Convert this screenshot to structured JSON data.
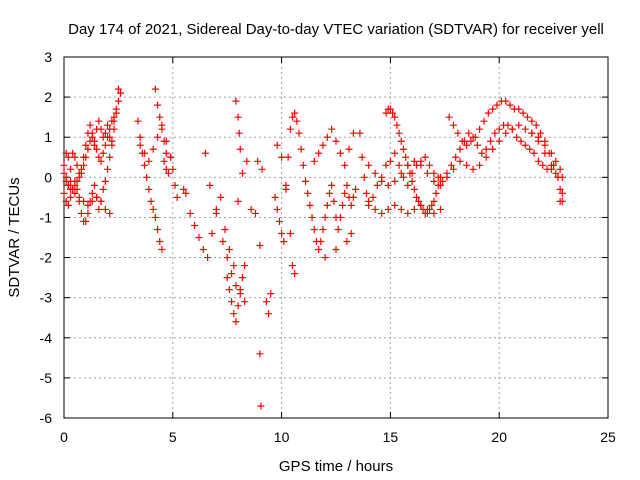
{
  "chart_data": {
    "type": "scatter",
    "title": "Day 174 of 2021, Sidereal Day-to-day VTEC variation (SDTVAR) for receiver yell",
    "xlabel": "GPS time / hours",
    "ylabel": "SDTVAR / TECUs",
    "xlim": [
      0,
      25
    ],
    "ylim": [
      -6,
      3
    ],
    "xticks": [
      "0",
      "5",
      "10",
      "15",
      "20",
      "25"
    ],
    "yticks": [
      "-6",
      "-5",
      "-4",
      "-3",
      "-2",
      "-1",
      "0",
      "1",
      "2",
      "3"
    ],
    "grid": true,
    "marker": "+",
    "color": "#ff0000",
    "series": [
      {
        "name": "SDTVAR",
        "x": [
          0.0,
          0.1,
          0.2,
          0.3,
          0.4,
          0.5,
          0.6,
          0.7,
          0.8,
          0.9,
          1.0,
          1.1,
          1.2,
          1.3,
          1.4,
          1.5,
          1.6,
          1.7,
          1.8,
          1.9,
          2.0,
          2.1,
          2.2,
          2.3,
          2.4,
          2.5,
          0.0,
          0.1,
          0.2,
          0.3,
          0.4,
          0.5,
          0.6,
          0.7,
          0.8,
          0.9,
          1.0,
          1.1,
          1.2,
          1.3,
          1.4,
          1.5,
          1.6,
          1.7,
          1.8,
          1.9,
          2.0,
          2.1,
          2.2,
          2.3,
          0.0,
          0.1,
          0.2,
          0.3,
          0.4,
          0.5,
          0.6,
          0.7,
          0.8,
          0.9,
          1.0,
          1.1,
          1.2,
          1.3,
          1.4,
          1.5,
          1.6,
          1.7,
          1.8,
          1.9,
          2.0,
          2.1,
          2.2,
          2.3,
          2.4,
          2.5,
          2.6,
          0.1,
          0.2,
          0.3,
          0.5,
          0.7,
          0.9,
          1.1,
          1.3,
          1.5,
          1.7,
          1.9,
          2.1,
          3.4,
          3.5,
          3.6,
          3.7,
          3.8,
          3.9,
          4.0,
          4.1,
          4.2,
          4.3,
          4.4,
          4.5,
          4.6,
          4.7,
          4.8,
          4.9,
          5.0,
          5.1,
          5.2,
          3.5,
          3.7,
          3.9,
          4.1,
          4.3,
          4.5,
          4.7,
          4.9,
          4.2,
          4.3,
          4.4,
          4.5,
          4.6,
          4.7,
          5.5,
          5.6,
          5.8,
          6.0,
          6.2,
          6.4,
          6.6,
          6.8,
          7.0,
          7.2,
          7.4,
          7.6,
          7.8,
          8.0,
          8.2,
          8.4,
          8.6,
          6.5,
          6.7,
          7.0,
          7.3,
          7.5,
          7.7,
          7.9,
          8.1,
          8.3,
          7.5,
          7.6,
          7.7,
          7.8,
          7.9,
          8.0,
          8.1,
          8.2,
          8.3,
          7.9,
          8.0,
          8.05,
          8.1,
          8.8,
          8.9,
          9.0,
          9.1,
          9.3,
          9.4,
          9.5,
          9.0,
          9.05,
          9.7,
          9.8,
          9.9,
          10.0,
          10.1,
          10.2,
          10.3,
          10.4,
          10.5,
          10.6,
          10.7,
          10.8,
          10.9,
          11.0,
          11.1,
          11.2,
          11.3,
          11.4,
          11.5,
          11.6,
          11.7,
          11.8,
          11.9,
          12.0,
          12.1,
          12.2,
          12.3,
          12.4,
          12.5,
          12.6,
          12.7,
          12.8,
          12.9,
          13.0,
          13.1,
          13.2,
          13.3,
          13.4,
          9.8,
          10.0,
          10.2,
          10.4,
          10.5,
          10.6,
          11.5,
          11.7,
          11.9,
          12.1,
          12.3,
          12.5,
          12.7,
          12.9,
          13.1,
          13.3,
          12.0,
          12.5,
          13.0,
          13.2,
          13.6,
          13.7,
          13.8,
          13.9,
          14.0,
          14.2,
          14.4,
          14.6,
          14.8,
          15.0,
          15.2,
          15.4,
          15.6,
          15.8,
          16.0,
          16.2,
          16.4,
          16.6,
          16.8,
          17.0,
          17.2,
          17.4,
          17.6,
          17.8,
          18.0,
          18.2,
          18.4,
          18.6,
          18.8,
          19.0,
          19.2,
          19.4,
          19.6,
          19.8,
          20.0,
          20.2,
          20.4,
          20.6,
          20.8,
          21.0,
          21.2,
          21.4,
          21.6,
          21.8,
          22.0,
          22.2,
          22.4,
          22.6,
          22.8,
          14.0,
          14.3,
          14.6,
          14.9,
          15.2,
          15.5,
          15.8,
          16.1,
          16.4,
          16.7,
          17.0,
          17.3,
          17.6,
          17.9,
          18.2,
          18.5,
          18.8,
          19.1,
          19.4,
          19.7,
          20.0,
          20.3,
          20.6,
          20.9,
          21.2,
          21.5,
          21.8,
          22.1,
          22.4,
          22.7,
          22.9,
          14.8,
          14.9,
          15.0,
          15.1,
          15.2,
          15.3,
          15.4,
          15.5,
          15.6,
          15.7,
          15.8,
          15.9,
          16.0,
          16.1,
          16.2,
          16.3,
          16.4,
          16.5,
          16.6,
          16.7,
          16.8,
          16.9,
          17.0,
          17.1,
          17.2,
          17.3,
          14.0,
          14.3,
          14.6,
          14.9,
          15.2,
          15.5,
          15.8,
          16.1,
          16.4,
          16.7,
          17.0,
          17.3,
          17.7,
          17.9,
          18.1,
          18.3,
          18.5,
          18.7,
          18.9,
          19.1,
          19.3,
          19.5,
          19.7,
          19.9,
          20.1,
          20.3,
          20.5,
          20.7,
          20.9,
          21.1,
          21.3,
          21.5,
          21.7,
          21.9,
          22.1,
          22.3,
          22.5,
          22.7,
          22.8,
          22.9,
          21.5,
          21.8,
          22.1,
          22.4,
          22.6,
          22.8,
          22.9
        ],
        "y": [
          0.3,
          0.6,
          0.5,
          0.2,
          0.6,
          0.5,
          0.3,
          0.1,
          0.2,
          0.5,
          0.8,
          1.1,
          1.3,
          1.1,
          0.8,
          1.2,
          1.4,
          1.2,
          1.0,
          1.1,
          1.3,
          1.0,
          0.8,
          1.2,
          1.6,
          2.2,
          -0.4,
          -0.6,
          -0.7,
          -0.5,
          -0.3,
          -0.1,
          -0.3,
          -0.6,
          -0.9,
          -1.1,
          -1.1,
          -0.9,
          -0.6,
          -0.4,
          -0.2,
          -0.5,
          -0.8,
          -0.6,
          -0.3,
          -0.1,
          0.2,
          0.5,
          0.9,
          1.4,
          0.1,
          0.0,
          -0.2,
          -0.1,
          -0.3,
          -0.2,
          -0.1,
          0.0,
          0.1,
          0.3,
          0.5,
          0.7,
          0.9,
          1.0,
          0.9,
          0.7,
          0.5,
          0.4,
          0.6,
          0.8,
          1.0,
          1.2,
          1.4,
          1.5,
          1.7,
          1.9,
          2.1,
          -0.1,
          -0.2,
          -0.3,
          -0.4,
          -0.5,
          -0.6,
          -0.7,
          -0.6,
          -0.5,
          -0.6,
          -0.8,
          -0.9,
          1.4,
          1.0,
          0.6,
          0.3,
          0.0,
          -0.3,
          -0.6,
          -0.8,
          -1.0,
          -1.3,
          -1.6,
          -1.8,
          0.4,
          0.2,
          0.1,
          0.5,
          0.2,
          -0.2,
          -0.5,
          0.8,
          0.6,
          0.4,
          0.7,
          1.0,
          1.3,
          0.9,
          0.5,
          2.2,
          1.8,
          1.5,
          1.2,
          0.9,
          0.6,
          -0.3,
          -0.4,
          -0.9,
          -1.2,
          -1.5,
          -1.8,
          -2.0,
          -1.4,
          -0.9,
          -0.5,
          -1.3,
          -1.8,
          -2.2,
          -0.6,
          0.1,
          0.4,
          -0.8,
          0.6,
          -0.2,
          -0.8,
          -1.6,
          -2.0,
          -2.4,
          -2.7,
          -2.9,
          -3.1,
          -2.5,
          -2.8,
          -3.1,
          -3.4,
          -3.6,
          -3.2,
          -2.8,
          -2.5,
          -2.2,
          1.9,
          1.5,
          1.1,
          0.7,
          -0.9,
          0.4,
          -1.7,
          0.2,
          -3.1,
          -3.4,
          -2.9,
          -4.4,
          -5.7,
          -0.5,
          -0.8,
          -1.1,
          -1.4,
          -1.6,
          -0.3,
          0.5,
          1.2,
          1.5,
          1.6,
          1.4,
          1.1,
          0.7,
          0.3,
          -0.1,
          -0.4,
          -0.7,
          -1.0,
          -1.3,
          -1.6,
          -1.8,
          -1.6,
          -1.3,
          -1.0,
          -0.7,
          -0.4,
          -0.2,
          -0.6,
          -1.0,
          -1.3,
          -1.0,
          -0.7,
          -0.4,
          -0.2,
          -0.5,
          -0.7,
          -0.5,
          -0.3,
          0.8,
          0.5,
          -0.2,
          -1.4,
          -2.2,
          -2.4,
          0.4,
          0.6,
          0.8,
          1.0,
          1.2,
          0.9,
          0.6,
          0.3,
          0.7,
          1.1,
          -2.0,
          -1.8,
          -1.6,
          -1.4,
          1.1,
          0.5,
          0.0,
          -0.4,
          -0.7,
          -0.5,
          -0.2,
          0.0,
          0.3,
          0.4,
          0.6,
          0.3,
          0.0,
          -0.2,
          0.1,
          0.3,
          0.4,
          0.5,
          0.3,
          0.1,
          0.0,
          -0.1,
          0.1,
          0.3,
          0.5,
          0.7,
          0.9,
          1.1,
          1.0,
          0.8,
          0.6,
          0.7,
          0.9,
          1.1,
          1.2,
          1.3,
          1.3,
          1.2,
          1.0,
          0.9,
          0.8,
          0.7,
          0.6,
          0.4,
          0.3,
          0.2,
          0.2,
          0.1,
          -0.6,
          0.3,
          0.1,
          -0.1,
          -0.2,
          -0.1,
          0.1,
          0.3,
          0.4,
          0.3,
          0.1,
          -0.1,
          -0.2,
          0.0,
          0.2,
          0.4,
          0.3,
          0.2,
          0.3,
          0.5,
          0.7,
          0.9,
          1.1,
          1.2,
          1.3,
          1.2,
          1.1,
          0.9,
          0.6,
          0.3,
          0.0,
          -0.4,
          1.6,
          1.7,
          1.7,
          1.6,
          1.5,
          1.3,
          1.1,
          0.9,
          0.7,
          0.5,
          0.3,
          0.1,
          -0.1,
          -0.3,
          -0.5,
          -0.6,
          -0.7,
          -0.8,
          -0.9,
          -0.9,
          -0.8,
          -0.7,
          -0.6,
          -0.4,
          -0.2,
          0.0,
          -0.6,
          -0.8,
          -0.9,
          -0.8,
          -0.7,
          -0.8,
          -0.9,
          -0.8,
          -0.7,
          -0.8,
          -0.9,
          -0.8,
          1.5,
          1.3,
          1.1,
          0.9,
          0.8,
          0.9,
          1.0,
          1.2,
          1.4,
          1.6,
          1.7,
          1.8,
          1.9,
          1.9,
          1.8,
          1.7,
          1.7,
          1.6,
          1.5,
          1.4,
          1.3,
          1.1,
          0.9,
          0.6,
          0.3,
          0.0,
          -0.3,
          -0.6,
          1.1,
          1.0,
          0.8,
          0.6,
          0.4,
          0.2,
          0.0
        ]
      }
    ]
  }
}
